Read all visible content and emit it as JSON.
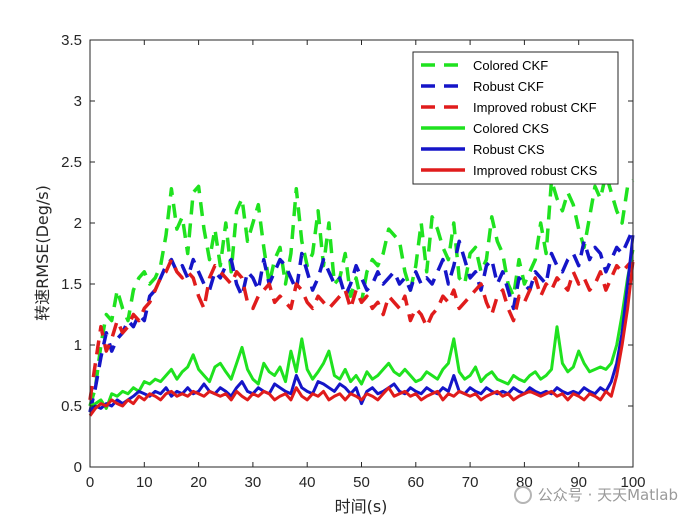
{
  "chart_data": {
    "type": "line",
    "title": "",
    "xlabel": "时间(s)",
    "ylabel": "转速RMSE(Deg/s)",
    "xlim": [
      0,
      100
    ],
    "ylim": [
      0,
      3.5
    ],
    "xticks": [
      0,
      10,
      20,
      30,
      40,
      50,
      60,
      70,
      80,
      90,
      100
    ],
    "yticks": [
      0,
      0.5,
      1,
      1.5,
      2,
      2.5,
      3,
      3.5
    ],
    "legend_position": "top-right",
    "x": [
      0,
      1,
      2,
      3,
      4,
      5,
      6,
      7,
      8,
      9,
      10,
      11,
      12,
      13,
      14,
      15,
      16,
      17,
      18,
      19,
      20,
      21,
      22,
      23,
      24,
      25,
      26,
      27,
      28,
      29,
      30,
      31,
      32,
      33,
      34,
      35,
      36,
      37,
      38,
      39,
      40,
      41,
      42,
      43,
      44,
      45,
      46,
      47,
      48,
      49,
      50,
      51,
      52,
      53,
      54,
      55,
      56,
      57,
      58,
      59,
      60,
      61,
      62,
      63,
      64,
      65,
      66,
      67,
      68,
      69,
      70,
      71,
      72,
      73,
      74,
      75,
      76,
      77,
      78,
      79,
      80,
      81,
      82,
      83,
      84,
      85,
      86,
      87,
      88,
      89,
      90,
      91,
      92,
      93,
      94,
      95,
      96,
      97,
      98,
      99,
      100
    ],
    "series": [
      {
        "name": "Colored CKF",
        "color": "#1fe21f",
        "style": "dashed",
        "values": [
          0.5,
          0.65,
          1.0,
          1.25,
          1.2,
          1.45,
          1.3,
          1.2,
          1.45,
          1.55,
          1.6,
          1.5,
          1.55,
          1.65,
          1.9,
          2.28,
          1.95,
          2.05,
          1.75,
          2.25,
          2.3,
          1.95,
          1.7,
          1.95,
          1.65,
          2.0,
          1.6,
          2.1,
          2.2,
          1.85,
          2.0,
          2.15,
          1.8,
          1.5,
          1.7,
          1.8,
          1.5,
          1.75,
          2.28,
          1.85,
          1.65,
          1.75,
          2.1,
          1.65,
          2.0,
          1.5,
          1.55,
          1.75,
          1.4,
          1.55,
          1.35,
          1.6,
          1.7,
          1.65,
          1.75,
          1.95,
          1.9,
          1.85,
          1.6,
          1.45,
          1.65,
          2.0,
          1.6,
          2.05,
          1.95,
          1.8,
          1.7,
          2.0,
          1.55,
          1.5,
          1.75,
          1.8,
          1.6,
          1.7,
          2.05,
          1.85,
          1.75,
          1.5,
          1.4,
          1.7,
          1.5,
          1.6,
          1.7,
          2.0,
          1.75,
          2.35,
          2.2,
          2.1,
          2.25,
          2.15,
          1.95,
          1.8,
          2.05,
          2.3,
          2.2,
          2.4,
          2.25,
          2.1,
          2.0,
          2.3,
          2.35
        ]
      },
      {
        "name": "Robust CKF",
        "color": "#1515c8",
        "style": "dashed",
        "values": [
          0.45,
          0.65,
          0.9,
          1.1,
          0.95,
          1.05,
          1.1,
          1.2,
          1.15,
          1.25,
          1.2,
          1.4,
          1.45,
          1.55,
          1.65,
          1.7,
          1.6,
          1.65,
          1.55,
          1.7,
          1.6,
          1.5,
          1.45,
          1.6,
          1.55,
          1.65,
          1.7,
          1.5,
          1.4,
          1.6,
          1.55,
          1.45,
          1.7,
          1.5,
          1.6,
          1.7,
          1.65,
          1.55,
          1.45,
          1.75,
          1.6,
          1.45,
          1.55,
          1.7,
          1.6,
          1.5,
          1.55,
          1.4,
          1.5,
          1.65,
          1.55,
          1.45,
          1.5,
          1.6,
          1.5,
          1.55,
          1.6,
          1.5,
          1.55,
          1.45,
          1.6,
          1.5,
          1.55,
          1.5,
          1.6,
          1.7,
          1.5,
          1.65,
          1.85,
          1.7,
          1.55,
          1.6,
          1.45,
          1.65,
          1.7,
          1.5,
          1.6,
          1.45,
          1.3,
          1.55,
          1.5,
          1.45,
          1.6,
          1.55,
          1.5,
          1.75,
          1.65,
          1.6,
          1.7,
          1.75,
          1.65,
          1.85,
          1.7,
          1.8,
          1.75,
          1.6,
          1.7,
          1.8,
          1.75,
          1.85,
          1.95
        ]
      },
      {
        "name": "Improved robust CKF",
        "color": "#e01c1c",
        "style": "dashed",
        "values": [
          0.55,
          0.85,
          1.15,
          0.95,
          1.05,
          1.2,
          1.1,
          1.15,
          1.25,
          1.2,
          1.3,
          1.35,
          1.45,
          1.55,
          1.6,
          1.7,
          1.6,
          1.55,
          1.6,
          1.55,
          1.4,
          1.3,
          1.55,
          1.65,
          1.6,
          1.55,
          1.5,
          1.6,
          1.55,
          1.35,
          1.3,
          1.4,
          1.45,
          1.5,
          1.35,
          1.4,
          1.35,
          1.3,
          1.5,
          1.45,
          1.35,
          1.3,
          1.4,
          1.35,
          1.3,
          1.35,
          1.4,
          1.45,
          1.3,
          1.45,
          1.35,
          1.4,
          1.3,
          1.35,
          1.25,
          1.4,
          1.35,
          1.3,
          1.4,
          1.2,
          1.3,
          1.25,
          1.15,
          1.25,
          1.3,
          1.4,
          1.35,
          1.45,
          1.3,
          1.35,
          1.4,
          1.45,
          1.5,
          1.35,
          1.25,
          1.4,
          1.45,
          1.3,
          1.2,
          1.4,
          1.35,
          1.45,
          1.55,
          1.4,
          1.5,
          1.45,
          1.55,
          1.5,
          1.45,
          1.6,
          1.5,
          1.55,
          1.45,
          1.5,
          1.6,
          1.45,
          1.55,
          1.65,
          1.6,
          1.65,
          1.7
        ]
      },
      {
        "name": "Colored CKS",
        "color": "#1fe21f",
        "style": "solid",
        "values": [
          0.5,
          0.52,
          0.55,
          0.48,
          0.6,
          0.58,
          0.62,
          0.6,
          0.65,
          0.62,
          0.7,
          0.68,
          0.72,
          0.7,
          0.75,
          0.8,
          0.72,
          0.78,
          0.82,
          0.92,
          0.8,
          0.75,
          0.7,
          0.82,
          0.85,
          0.78,
          0.72,
          0.85,
          0.98,
          0.8,
          0.72,
          0.68,
          0.85,
          0.78,
          0.75,
          0.82,
          0.7,
          0.95,
          0.78,
          1.05,
          0.8,
          0.72,
          0.78,
          0.85,
          0.95,
          0.75,
          0.72,
          0.8,
          0.7,
          0.75,
          0.68,
          0.78,
          0.72,
          0.75,
          0.8,
          0.85,
          0.78,
          0.75,
          0.8,
          0.75,
          0.7,
          0.72,
          0.78,
          0.75,
          0.72,
          0.8,
          0.85,
          1.05,
          0.78,
          0.72,
          0.75,
          0.82,
          0.7,
          0.75,
          0.78,
          0.72,
          0.7,
          0.68,
          0.75,
          0.72,
          0.7,
          0.75,
          0.78,
          0.72,
          0.75,
          0.8,
          1.15,
          0.85,
          0.78,
          0.82,
          0.95,
          0.85,
          0.78,
          0.8,
          0.82,
          0.8,
          0.85,
          1.0,
          1.25,
          1.55,
          1.78
        ]
      },
      {
        "name": "Robust CKS",
        "color": "#1515c8",
        "style": "solid",
        "values": [
          0.45,
          0.5,
          0.48,
          0.52,
          0.5,
          0.55,
          0.52,
          0.55,
          0.58,
          0.62,
          0.6,
          0.58,
          0.62,
          0.6,
          0.65,
          0.58,
          0.62,
          0.6,
          0.65,
          0.6,
          0.62,
          0.68,
          0.62,
          0.6,
          0.65,
          0.62,
          0.58,
          0.65,
          0.7,
          0.62,
          0.6,
          0.65,
          0.62,
          0.6,
          0.68,
          0.65,
          0.62,
          0.6,
          0.75,
          0.65,
          0.62,
          0.6,
          0.7,
          0.68,
          0.65,
          0.62,
          0.68,
          0.65,
          0.6,
          0.65,
          0.52,
          0.62,
          0.65,
          0.6,
          0.62,
          0.65,
          0.68,
          0.62,
          0.6,
          0.65,
          0.62,
          0.6,
          0.65,
          0.62,
          0.6,
          0.65,
          0.62,
          0.75,
          0.62,
          0.6,
          0.65,
          0.62,
          0.6,
          0.65,
          0.62,
          0.6,
          0.62,
          0.6,
          0.65,
          0.62,
          0.6,
          0.65,
          0.62,
          0.6,
          0.62,
          0.6,
          0.65,
          0.62,
          0.6,
          0.62,
          0.6,
          0.65,
          0.62,
          0.6,
          0.65,
          0.62,
          0.7,
          0.85,
          1.1,
          1.5,
          1.9
        ]
      },
      {
        "name": "Improved robust CKS",
        "color": "#e01c1c",
        "style": "solid",
        "values": [
          0.42,
          0.48,
          0.52,
          0.5,
          0.55,
          0.52,
          0.5,
          0.55,
          0.52,
          0.58,
          0.55,
          0.6,
          0.58,
          0.55,
          0.6,
          0.62,
          0.58,
          0.6,
          0.58,
          0.62,
          0.6,
          0.58,
          0.62,
          0.6,
          0.58,
          0.6,
          0.55,
          0.62,
          0.58,
          0.55,
          0.6,
          0.58,
          0.62,
          0.6,
          0.55,
          0.58,
          0.6,
          0.55,
          0.65,
          0.58,
          0.55,
          0.6,
          0.58,
          0.62,
          0.55,
          0.58,
          0.6,
          0.55,
          0.6,
          0.58,
          0.55,
          0.6,
          0.58,
          0.55,
          0.6,
          0.65,
          0.58,
          0.6,
          0.62,
          0.58,
          0.6,
          0.55,
          0.58,
          0.6,
          0.62,
          0.55,
          0.6,
          0.58,
          0.62,
          0.6,
          0.58,
          0.6,
          0.55,
          0.58,
          0.6,
          0.62,
          0.58,
          0.6,
          0.55,
          0.58,
          0.6,
          0.62,
          0.6,
          0.58,
          0.6,
          0.62,
          0.58,
          0.6,
          0.55,
          0.6,
          0.58,
          0.55,
          0.6,
          0.58,
          0.55,
          0.62,
          0.58,
          0.75,
          1.0,
          1.3,
          1.68
        ]
      }
    ]
  },
  "watermark": {
    "text": "公众号 · 天天Matlab"
  }
}
